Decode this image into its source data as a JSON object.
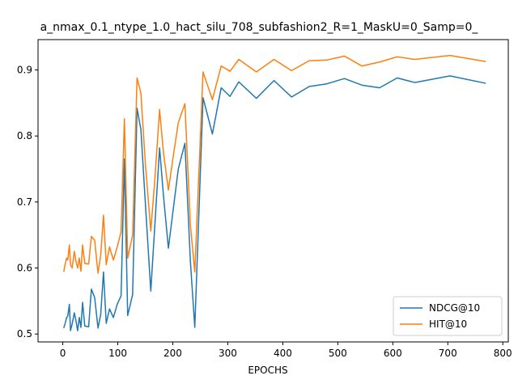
{
  "chart_data": {
    "type": "line",
    "title": "a_nmax_0.1_ntype_1.0_hact_silu_708_subfashion2_R=1_MaskU=0_Samp=0_",
    "xlabel": "EPOCHS",
    "ylabel": "",
    "xlim": [
      -45,
      810
    ],
    "ylim": [
      0.488,
      0.946
    ],
    "xticks": [
      0,
      100,
      200,
      300,
      400,
      500,
      600,
      700,
      800
    ],
    "yticks": [
      0.5,
      0.6,
      0.7,
      0.8,
      0.9
    ],
    "ytick_labels": [
      "0.5",
      "0.6",
      "0.7",
      "0.8",
      "0.9"
    ],
    "grid": false,
    "legend_position": "lower-right",
    "x": [
      2,
      4,
      7,
      9,
      12,
      14,
      17,
      21,
      24,
      27,
      30,
      33,
      36,
      40,
      47,
      52,
      58,
      64,
      69,
      74,
      79,
      85,
      92,
      99,
      106,
      112,
      118,
      127,
      135,
      142,
      150,
      160,
      167,
      176,
      183,
      192,
      201,
      210,
      222,
      232,
      240,
      255,
      272,
      288,
      304,
      320,
      352,
      384,
      416,
      448,
      480,
      512,
      544,
      576,
      608,
      640,
      704,
      768
    ],
    "series": [
      {
        "name": "NDCG@10",
        "color": "#1f77b4",
        "values": [
          0.51,
          0.515,
          0.525,
          0.527,
          0.545,
          0.505,
          0.515,
          0.532,
          0.52,
          0.505,
          0.525,
          0.51,
          0.548,
          0.512,
          0.511,
          0.568,
          0.555,
          0.509,
          0.53,
          0.594,
          0.516,
          0.538,
          0.525,
          0.545,
          0.558,
          0.765,
          0.528,
          0.56,
          0.842,
          0.81,
          0.7,
          0.565,
          0.66,
          0.782,
          0.71,
          0.63,
          0.69,
          0.75,
          0.789,
          0.61,
          0.51,
          0.858,
          0.803,
          0.873,
          0.86,
          0.882,
          0.857,
          0.884,
          0.859,
          0.875,
          0.879,
          0.887,
          0.877,
          0.873,
          0.888,
          0.881,
          0.891,
          0.88
        ]
      },
      {
        "name": "HIT@10",
        "color": "#ff7f0e",
        "values": [
          0.595,
          0.605,
          0.615,
          0.612,
          0.635,
          0.605,
          0.6,
          0.625,
          0.61,
          0.6,
          0.615,
          0.595,
          0.635,
          0.607,
          0.606,
          0.648,
          0.642,
          0.592,
          0.62,
          0.68,
          0.605,
          0.632,
          0.612,
          0.632,
          0.655,
          0.826,
          0.615,
          0.65,
          0.888,
          0.865,
          0.76,
          0.656,
          0.73,
          0.84,
          0.775,
          0.718,
          0.77,
          0.82,
          0.849,
          0.665,
          0.594,
          0.897,
          0.855,
          0.906,
          0.898,
          0.916,
          0.897,
          0.916,
          0.899,
          0.914,
          0.915,
          0.921,
          0.906,
          0.912,
          0.92,
          0.916,
          0.922,
          0.913
        ]
      }
    ]
  }
}
